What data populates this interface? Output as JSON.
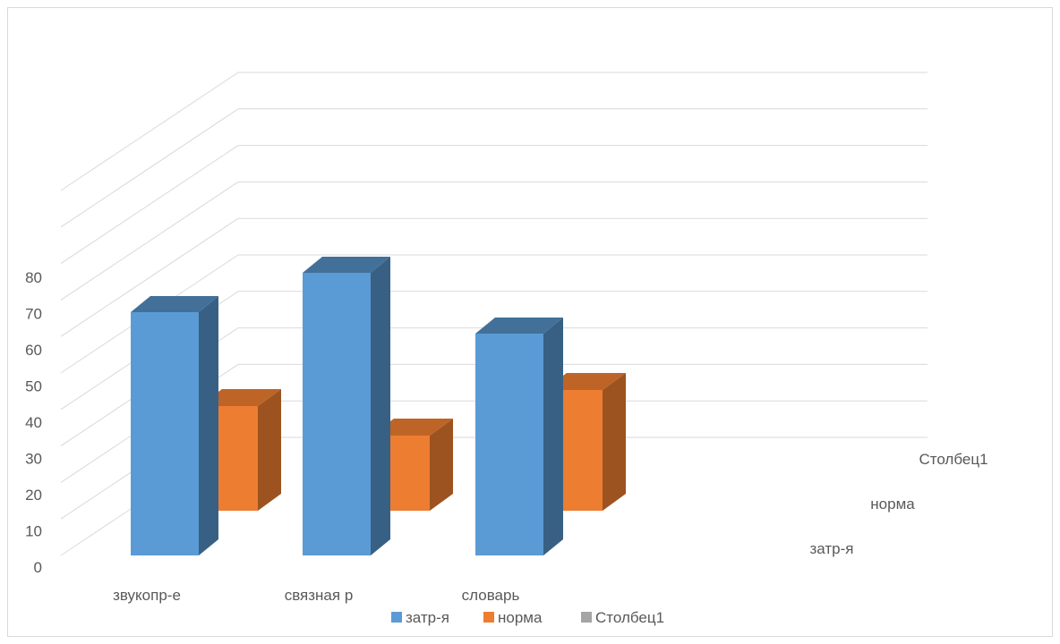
{
  "chart_data": {
    "type": "bar",
    "subtype": "3d-column",
    "categories": [
      "звукопр-е",
      "связная р",
      "словарь"
    ],
    "series": [
      {
        "name": "затр-я",
        "values": [
          68,
          79,
          62
        ],
        "color": "#5b9bd5"
      },
      {
        "name": "норма",
        "values": [
          33,
          22,
          39
        ],
        "color": "#ed7d31"
      },
      {
        "name": "Столбец1",
        "values": [
          0,
          0,
          0
        ],
        "color": "#a5a5a5"
      }
    ],
    "y_ticks": [
      "0",
      "10",
      "20",
      "30",
      "40",
      "50",
      "60",
      "70",
      "80"
    ],
    "ylim": [
      0,
      80
    ],
    "grid": true,
    "legend_position": "bottom"
  }
}
